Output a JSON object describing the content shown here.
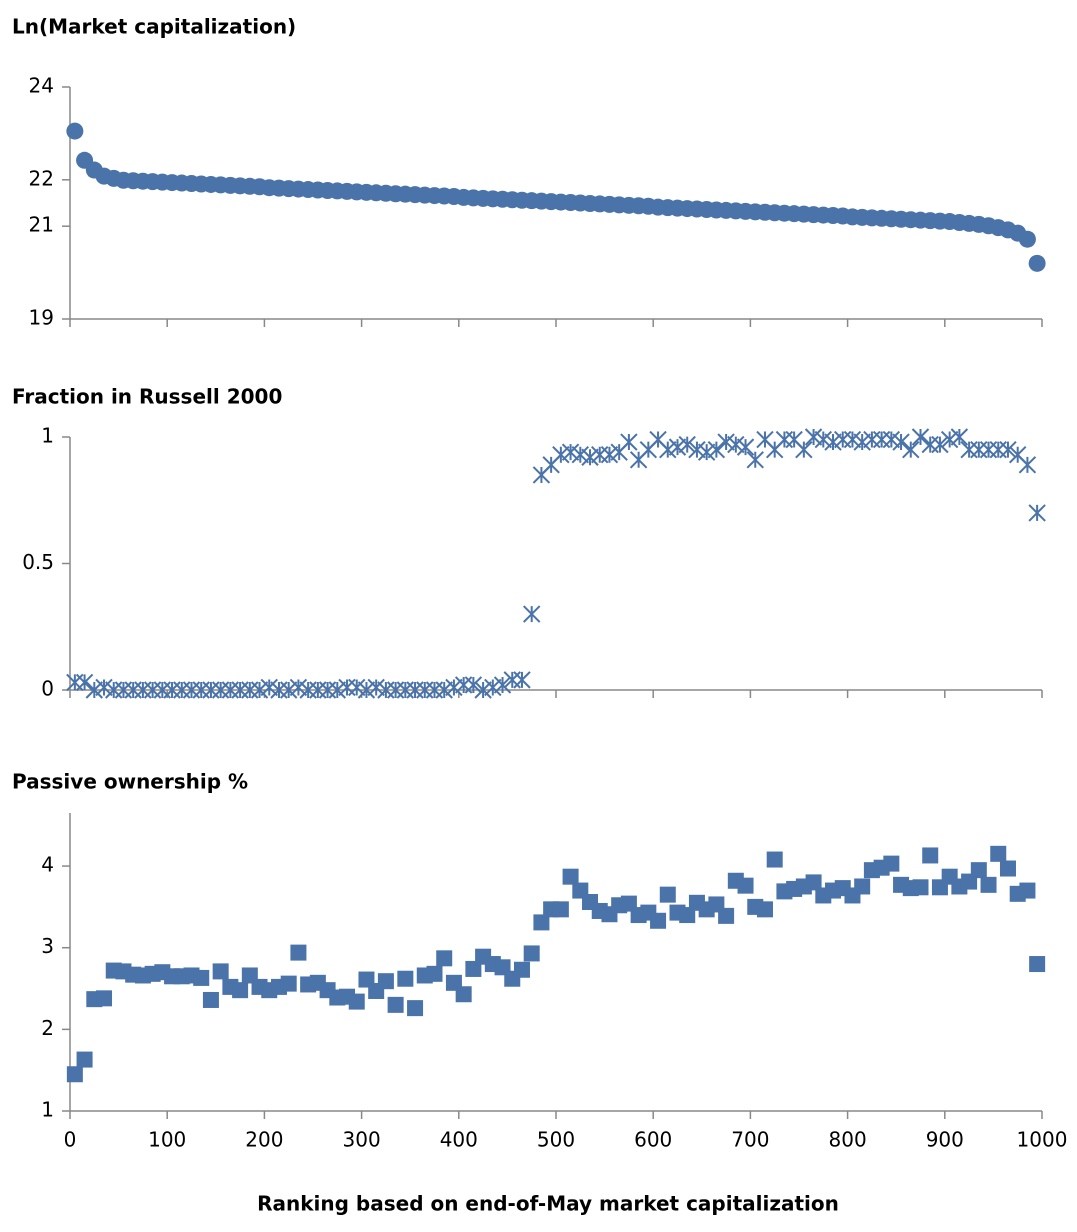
{
  "chart_data": [
    {
      "type": "scatter",
      "title": "Ln(Market capitalization)",
      "marker": "circle",
      "color": "#4a73a9",
      "xlim": [
        0,
        1000
      ],
      "ylim": [
        19,
        24
      ],
      "yticks": [
        19,
        21,
        22,
        24
      ],
      "x": [
        5,
        15,
        25,
        35,
        45,
        55,
        65,
        75,
        85,
        95,
        105,
        115,
        125,
        135,
        145,
        155,
        165,
        175,
        185,
        195,
        205,
        215,
        225,
        235,
        245,
        255,
        265,
        275,
        285,
        295,
        305,
        315,
        325,
        335,
        345,
        355,
        365,
        375,
        385,
        395,
        405,
        415,
        425,
        435,
        445,
        455,
        465,
        475,
        485,
        495,
        505,
        515,
        525,
        535,
        545,
        555,
        565,
        575,
        585,
        595,
        605,
        615,
        625,
        635,
        645,
        655,
        665,
        675,
        685,
        695,
        705,
        715,
        725,
        735,
        745,
        755,
        765,
        775,
        785,
        795,
        805,
        815,
        825,
        835,
        845,
        855,
        865,
        875,
        885,
        895,
        905,
        915,
        925,
        935,
        945,
        955,
        965,
        975,
        985,
        995
      ],
      "values": [
        23.05,
        22.42,
        22.21,
        22.08,
        22.03,
        21.99,
        21.98,
        21.97,
        21.96,
        21.95,
        21.94,
        21.93,
        21.92,
        21.91,
        21.9,
        21.89,
        21.88,
        21.87,
        21.86,
        21.85,
        21.83,
        21.82,
        21.81,
        21.8,
        21.79,
        21.78,
        21.77,
        21.76,
        21.75,
        21.74,
        21.73,
        21.72,
        21.71,
        21.7,
        21.69,
        21.68,
        21.67,
        21.66,
        21.65,
        21.64,
        21.62,
        21.61,
        21.6,
        21.59,
        21.58,
        21.57,
        21.56,
        21.55,
        21.54,
        21.53,
        21.52,
        21.51,
        21.5,
        21.49,
        21.48,
        21.47,
        21.46,
        21.45,
        21.44,
        21.43,
        21.41,
        21.4,
        21.39,
        21.38,
        21.37,
        21.36,
        21.35,
        21.34,
        21.33,
        21.32,
        21.31,
        21.3,
        21.29,
        21.28,
        21.27,
        21.26,
        21.25,
        21.24,
        21.23,
        21.22,
        21.2,
        21.19,
        21.18,
        21.17,
        21.16,
        21.15,
        21.14,
        21.13,
        21.12,
        21.11,
        21.1,
        21.08,
        21.06,
        21.04,
        21.01,
        20.97,
        20.92,
        20.85,
        20.72,
        20.2
      ]
    },
    {
      "type": "scatter",
      "title": "Fraction in Russell 2000",
      "marker": "star",
      "color": "#4a73a9",
      "xlim": [
        0,
        1000
      ],
      "ylim": [
        0,
        1
      ],
      "yticks": [
        0,
        0.5,
        1
      ],
      "x": [
        5,
        15,
        25,
        35,
        45,
        55,
        65,
        75,
        85,
        95,
        105,
        115,
        125,
        135,
        145,
        155,
        165,
        175,
        185,
        195,
        205,
        215,
        225,
        235,
        245,
        255,
        265,
        275,
        285,
        295,
        305,
        315,
        325,
        335,
        345,
        355,
        365,
        375,
        385,
        395,
        405,
        415,
        425,
        435,
        445,
        455,
        465,
        475,
        485,
        495,
        505,
        515,
        525,
        535,
        545,
        555,
        565,
        575,
        585,
        595,
        605,
        615,
        625,
        635,
        645,
        655,
        665,
        675,
        685,
        695,
        705,
        715,
        725,
        735,
        745,
        755,
        765,
        775,
        785,
        795,
        805,
        815,
        825,
        835,
        845,
        855,
        865,
        875,
        885,
        895,
        905,
        915,
        925,
        935,
        945,
        955,
        965,
        975,
        985,
        995
      ],
      "values": [
        0.03,
        0.03,
        0,
        0.01,
        0,
        0,
        0,
        0,
        0,
        0,
        0,
        0,
        0,
        0,
        0,
        0,
        0,
        0,
        0,
        0,
        0.01,
        0,
        0,
        0.01,
        0,
        0,
        0,
        0,
        0.01,
        0.01,
        0,
        0.01,
        0,
        0,
        0,
        0,
        0,
        0,
        0,
        0.01,
        0.02,
        0.02,
        0,
        0.01,
        0.02,
        0.04,
        0.04,
        0.3,
        0.85,
        0.89,
        0.93,
        0.94,
        0.93,
        0.92,
        0.93,
        0.93,
        0.94,
        0.98,
        0.91,
        0.95,
        0.99,
        0.95,
        0.96,
        0.97,
        0.95,
        0.94,
        0.95,
        0.98,
        0.97,
        0.96,
        0.91,
        0.99,
        0.95,
        0.99,
        0.99,
        0.95,
        1,
        0.99,
        0.98,
        0.99,
        0.99,
        0.98,
        0.99,
        0.99,
        0.99,
        0.98,
        0.95,
        1,
        0.97,
        0.97,
        0.99,
        1,
        0.95,
        0.95,
        0.95,
        0.95,
        0.95,
        0.93,
        0.89,
        0.7
      ]
    },
    {
      "type": "scatter",
      "title": "Passive ownership %",
      "marker": "square",
      "color": "#4a73a9",
      "xlabel": "Ranking based on end-of-May market capitalization",
      "xlim": [
        0,
        1000
      ],
      "xticks": [
        0,
        100,
        200,
        300,
        400,
        500,
        600,
        700,
        800,
        900,
        1000
      ],
      "ylim": [
        1,
        4.65
      ],
      "yticks": [
        1,
        2,
        3,
        4
      ],
      "x": [
        5,
        15,
        25,
        35,
        45,
        55,
        65,
        75,
        85,
        95,
        105,
        115,
        125,
        135,
        145,
        155,
        165,
        175,
        185,
        195,
        205,
        215,
        225,
        235,
        245,
        255,
        265,
        275,
        285,
        295,
        305,
        315,
        325,
        335,
        345,
        355,
        365,
        375,
        385,
        395,
        405,
        415,
        425,
        435,
        445,
        455,
        465,
        475,
        485,
        495,
        505,
        515,
        525,
        535,
        545,
        555,
        565,
        575,
        585,
        595,
        605,
        615,
        625,
        635,
        645,
        655,
        665,
        675,
        685,
        695,
        705,
        715,
        725,
        735,
        745,
        755,
        765,
        775,
        785,
        795,
        805,
        815,
        825,
        835,
        845,
        855,
        865,
        875,
        885,
        895,
        905,
        915,
        925,
        935,
        945,
        955,
        965,
        975,
        985,
        995
      ],
      "values": [
        1.45,
        1.63,
        2.37,
        2.38,
        2.72,
        2.71,
        2.67,
        2.66,
        2.68,
        2.7,
        2.65,
        2.65,
        2.66,
        2.63,
        2.36,
        2.71,
        2.52,
        2.48,
        2.66,
        2.52,
        2.48,
        2.52,
        2.56,
        2.94,
        2.55,
        2.57,
        2.48,
        2.39,
        2.4,
        2.34,
        2.61,
        2.47,
        2.59,
        2.3,
        2.62,
        2.26,
        2.66,
        2.68,
        2.87,
        2.57,
        2.43,
        2.74,
        2.89,
        2.8,
        2.76,
        2.62,
        2.73,
        2.93,
        3.31,
        3.47,
        3.47,
        3.87,
        3.7,
        3.56,
        3.45,
        3.41,
        3.52,
        3.54,
        3.4,
        3.43,
        3.33,
        3.65,
        3.43,
        3.4,
        3.55,
        3.47,
        3.53,
        3.39,
        3.82,
        3.76,
        3.5,
        3.47,
        4.08,
        3.69,
        3.72,
        3.75,
        3.8,
        3.64,
        3.7,
        3.73,
        3.64,
        3.75,
        3.95,
        3.98,
        4.03,
        3.77,
        3.73,
        3.74,
        4.13,
        3.74,
        3.87,
        3.75,
        3.81,
        3.95,
        3.77,
        4.15,
        3.97,
        3.66,
        3.7,
        2.8
      ]
    }
  ]
}
